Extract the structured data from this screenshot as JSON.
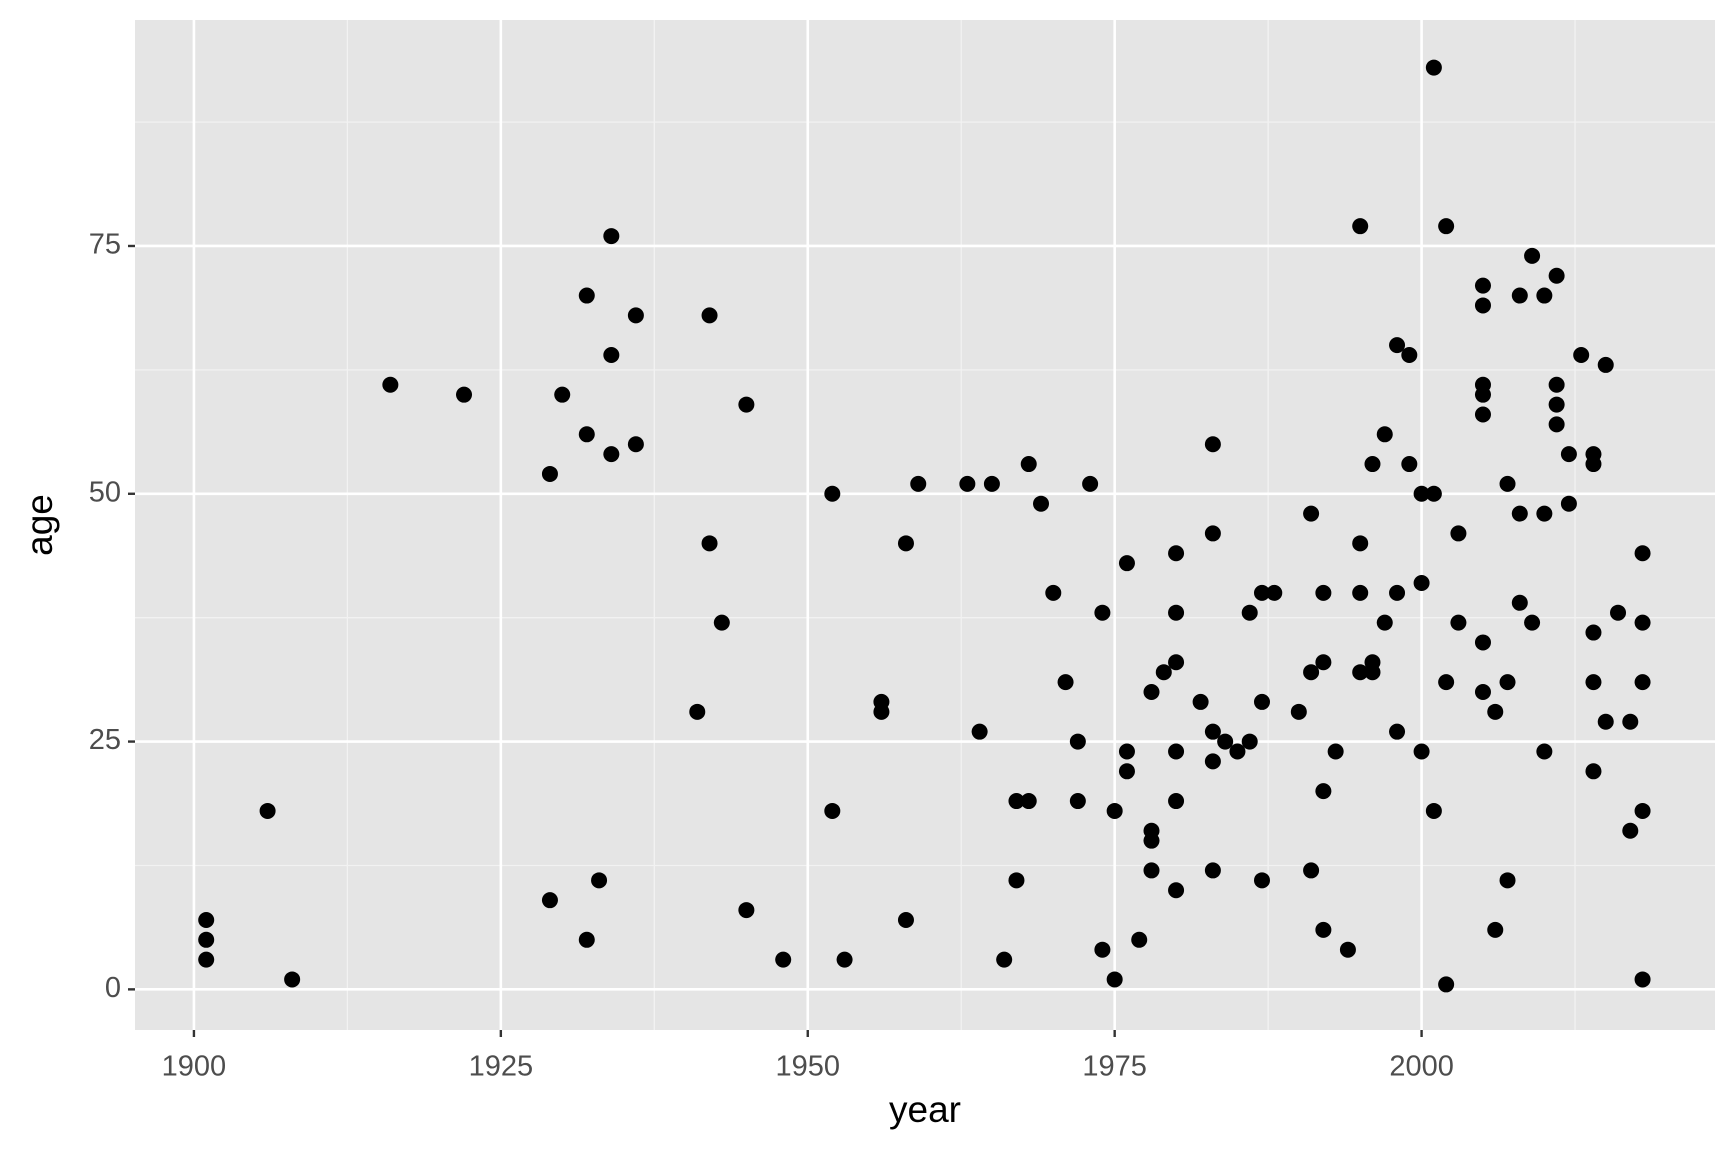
{
  "chart_data": {
    "type": "scatter",
    "x_label": "year",
    "y_label": "age",
    "color": "#000000",
    "grid": true,
    "xlim": [
      1895.2,
      2023.9
    ],
    "ylim": [
      -4.1,
      97.8
    ],
    "xticks": [
      1900,
      1925,
      1950,
      1975,
      2000
    ],
    "yticks": [
      0,
      25,
      50,
      75
    ],
    "series": [
      {
        "x": [
          1901,
          1901,
          1901,
          1906,
          1908,
          1916,
          1922,
          1929,
          1929,
          1930,
          1932,
          1932,
          1932,
          1933,
          1934,
          1934,
          1934,
          1936,
          1936,
          1941,
          1942,
          1942,
          1943,
          1945,
          1945,
          1948,
          1952,
          1952,
          1953,
          1956,
          1956,
          1958,
          1958,
          1959,
          1963,
          1964,
          1965,
          1966,
          1967,
          1967,
          1968,
          1968,
          1969,
          1970,
          1971,
          1972,
          1972,
          1973,
          1974,
          1974,
          1975,
          1975,
          1976,
          1976,
          1976,
          1977,
          1978,
          1978,
          1978,
          1978,
          1979,
          1980,
          1980,
          1980,
          1980,
          1980,
          1980,
          1982,
          1983,
          1983,
          1983,
          1983,
          1983,
          1984,
          1985,
          1986,
          1986,
          1987,
          1987,
          1987,
          1988,
          1990,
          1991,
          1991,
          1991,
          1992,
          1992,
          1992,
          1992,
          1993,
          1994,
          1995,
          1995,
          1995,
          1995,
          1996,
          1996,
          1996,
          1997,
          1997,
          1998,
          1998,
          1998,
          1999,
          1999,
          2000,
          2000,
          2000,
          2001,
          2001,
          2001,
          2002,
          2002,
          2002,
          2003,
          2003,
          2005,
          2005,
          2005,
          2005,
          2005,
          2005,
          2005,
          2006,
          2006,
          2007,
          2007,
          2007,
          2008,
          2008,
          2008,
          2009,
          2009,
          2010,
          2010,
          2010,
          2011,
          2011,
          2011,
          2011,
          2012,
          2012,
          2013,
          2014,
          2014,
          2014,
          2014,
          2014,
          2015,
          2015,
          2016,
          2017,
          2017,
          2018,
          2018,
          2018,
          2018,
          2018
        ],
        "values": [
          7,
          5,
          3,
          18,
          1,
          61,
          60,
          52,
          9,
          60,
          70,
          56,
          5,
          11,
          76,
          64,
          54,
          68,
          55,
          28,
          68,
          45,
          37,
          59,
          8,
          3,
          50,
          18,
          3,
          29,
          28,
          45,
          7,
          51,
          51,
          26,
          51,
          3,
          19,
          11,
          53,
          19,
          49,
          40,
          31,
          25,
          19,
          51,
          38,
          4,
          18,
          1,
          43,
          24,
          22,
          5,
          30,
          16,
          15,
          12,
          32,
          44,
          38,
          33,
          24,
          19,
          10,
          29,
          55,
          46,
          26,
          23,
          12,
          25,
          24,
          38,
          25,
          40,
          29,
          11,
          40,
          28,
          48,
          32,
          12,
          40,
          33,
          20,
          6,
          24,
          4,
          77,
          45,
          40,
          32,
          53,
          33,
          32,
          56,
          37,
          65,
          40,
          26,
          64,
          53,
          50,
          41,
          24,
          93,
          50,
          18,
          77,
          31,
          0.5,
          46,
          37,
          71,
          69,
          61,
          60,
          58,
          35,
          30,
          28,
          6,
          51,
          31,
          11,
          70,
          48,
          39,
          74,
          37,
          70,
          48,
          24,
          72,
          61,
          59,
          57,
          54,
          49,
          64,
          54,
          53,
          36,
          31,
          22,
          63,
          27,
          38,
          27,
          16,
          44,
          37,
          31,
          18,
          1
        ]
      }
    ]
  }
}
